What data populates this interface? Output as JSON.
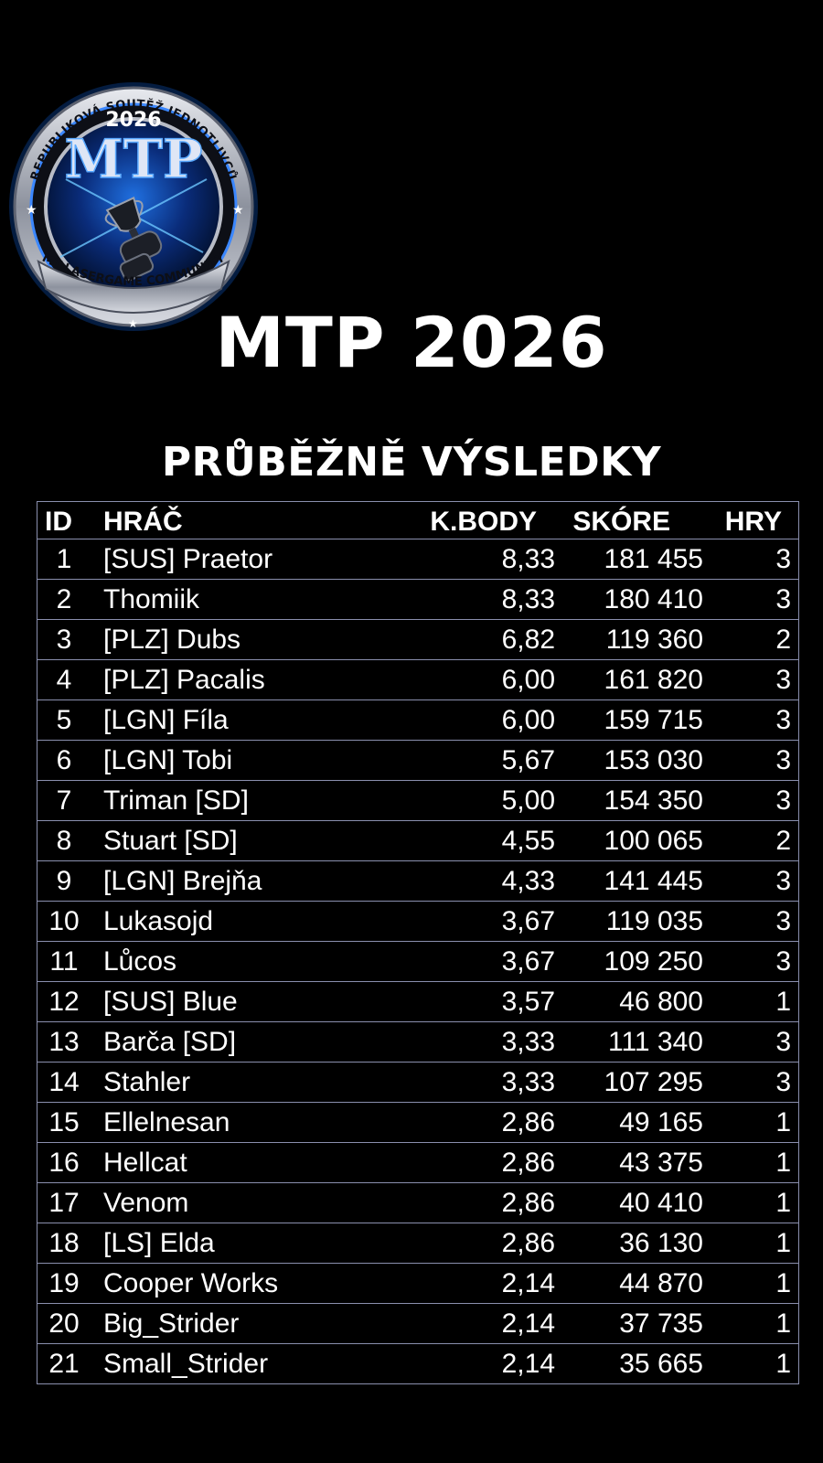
{
  "badge": {
    "top_text": "REPUBLIKOVÁ SOUTĚŽ JEDNOTLIVCŮ",
    "year": "2026",
    "logo": "MTP",
    "bottom_text": "MT LASERGAME COMMUNITY",
    "icon": "trophy-icon",
    "colors": {
      "ring": "#c9ccd4",
      "accent": "#1f8fff",
      "inner": "#02102e"
    }
  },
  "title": "MTP 2026",
  "subtitle": "PRŮBĚŽNĚ VÝSLEDKY",
  "table": {
    "columns": [
      "ID",
      "HRÁČ",
      "K.BODY",
      "SKÓRE",
      "HRY"
    ],
    "rows": [
      {
        "id": "1",
        "player": "[SUS] Praetor",
        "points": "8,33",
        "score": "181 455",
        "games": "3"
      },
      {
        "id": "2",
        "player": "Thomiik",
        "points": "8,33",
        "score": "180 410",
        "games": "3"
      },
      {
        "id": "3",
        "player": "[PLZ] Dubs",
        "points": "6,82",
        "score": "119 360",
        "games": "2"
      },
      {
        "id": "4",
        "player": "[PLZ] Pacalis",
        "points": "6,00",
        "score": "161 820",
        "games": "3"
      },
      {
        "id": "5",
        "player": "[LGN] Fíla",
        "points": "6,00",
        "score": "159 715",
        "games": "3"
      },
      {
        "id": "6",
        "player": "[LGN] Tobi",
        "points": "5,67",
        "score": "153 030",
        "games": "3"
      },
      {
        "id": "7",
        "player": "Triman [SD]",
        "points": "5,00",
        "score": "154 350",
        "games": "3"
      },
      {
        "id": "8",
        "player": "Stuart [SD]",
        "points": "4,55",
        "score": "100 065",
        "games": "2"
      },
      {
        "id": "9",
        "player": "[LGN] Brejňa",
        "points": "4,33",
        "score": "141 445",
        "games": "3"
      },
      {
        "id": "10",
        "player": "Lukasojd",
        "points": "3,67",
        "score": "119 035",
        "games": "3"
      },
      {
        "id": "11",
        "player": "Lůcos",
        "points": "3,67",
        "score": "109 250",
        "games": "3"
      },
      {
        "id": "12",
        "player": "[SUS] Blue",
        "points": "3,57",
        "score": "46 800",
        "games": "1"
      },
      {
        "id": "13",
        "player": "Barča [SD]",
        "points": "3,33",
        "score": "111 340",
        "games": "3"
      },
      {
        "id": "14",
        "player": "Stahler",
        "points": "3,33",
        "score": "107 295",
        "games": "3"
      },
      {
        "id": "15",
        "player": "Ellelnesan",
        "points": "2,86",
        "score": "49 165",
        "games": "1"
      },
      {
        "id": "16",
        "player": "Hellcat",
        "points": "2,86",
        "score": "43 375",
        "games": "1"
      },
      {
        "id": "17",
        "player": "Venom",
        "points": "2,86",
        "score": "40 410",
        "games": "1"
      },
      {
        "id": "18",
        "player": "[LS] Elda",
        "points": "2,86",
        "score": "36 130",
        "games": "1"
      },
      {
        "id": "19",
        "player": "Cooper Works",
        "points": "2,14",
        "score": "44 870",
        "games": "1"
      },
      {
        "id": "20",
        "player": "Big_Strider",
        "points": "2,14",
        "score": "37 735",
        "games": "1"
      },
      {
        "id": "21",
        "player": "Small_Strider",
        "points": "2,14",
        "score": "35 665",
        "games": "1"
      }
    ]
  }
}
